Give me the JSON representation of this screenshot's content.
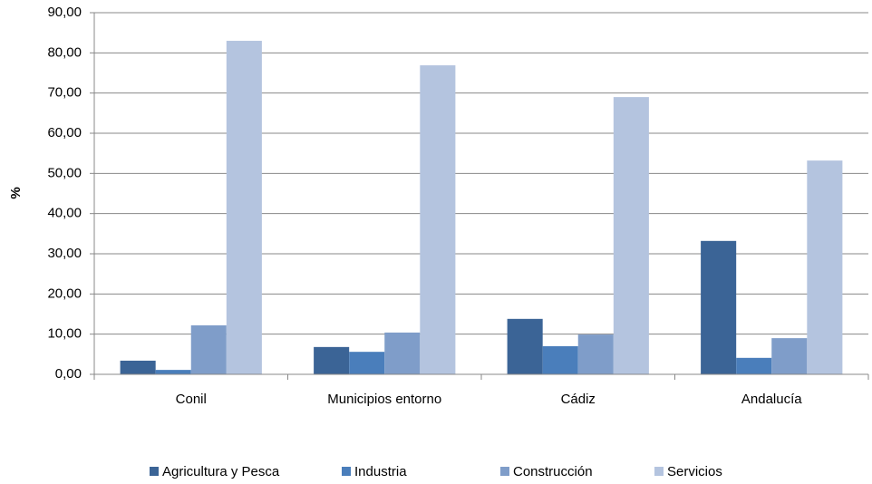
{
  "chart_data": {
    "type": "bar",
    "y_label": "%",
    "categories": [
      "Conil",
      "Municipios entorno",
      "Cádiz",
      "Andalucía"
    ],
    "series": [
      {
        "name": "Agricultura y Pesca",
        "color": "#3b6496",
        "values": [
          3.4,
          6.8,
          13.8,
          33.2
        ]
      },
      {
        "name": "Industria",
        "color": "#4a7ebb",
        "values": [
          1.1,
          5.6,
          7.0,
          4.1
        ]
      },
      {
        "name": "Construcción",
        "color": "#7f9dc9",
        "values": [
          12.2,
          10.4,
          9.9,
          9.0
        ]
      },
      {
        "name": "Servicios",
        "color": "#b4c4df",
        "values": [
          83.0,
          76.9,
          69.0,
          53.2
        ]
      }
    ],
    "ylim": [
      0,
      90
    ],
    "yticks": [
      {
        "value": 0,
        "label": "0,00"
      },
      {
        "value": 10,
        "label": "10,00"
      },
      {
        "value": 20,
        "label": "20,00"
      },
      {
        "value": 30,
        "label": "30,00"
      },
      {
        "value": 40,
        "label": "40,00"
      },
      {
        "value": 50,
        "label": "50,00"
      },
      {
        "value": 60,
        "label": "60,00"
      },
      {
        "value": 70,
        "label": "70,00"
      },
      {
        "value": 80,
        "label": "80,00"
      },
      {
        "value": 90,
        "label": "90,00"
      }
    ],
    "grid": true,
    "legend": "bottom"
  }
}
